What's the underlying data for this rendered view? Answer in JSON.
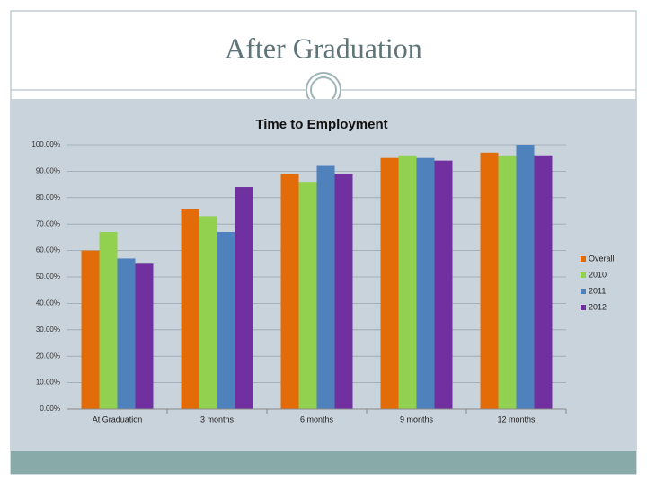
{
  "slide_title": "After Graduation",
  "chart_data": {
    "type": "bar",
    "title": "Time to Employment",
    "categories": [
      "At Graduation",
      "3 months",
      "6 months",
      "9 months",
      "12 months"
    ],
    "series": [
      {
        "name": "Overall",
        "color": "#e36c09",
        "values": [
          60,
          75.5,
          89,
          95,
          97
        ]
      },
      {
        "name": "2010",
        "color": "#92d050",
        "values": [
          67,
          73,
          86,
          96,
          96
        ]
      },
      {
        "name": "2011",
        "color": "#4f81bd",
        "values": [
          57,
          67,
          92,
          95,
          100
        ]
      },
      {
        "name": "2012",
        "color": "#7030a0",
        "values": [
          55,
          84,
          89,
          94,
          96
        ]
      }
    ],
    "ylim": [
      0,
      100
    ],
    "yticks": [
      {
        "value": 0,
        "label": "0.00%"
      },
      {
        "value": 10,
        "label": "10.00%"
      },
      {
        "value": 20,
        "label": "20.00%"
      },
      {
        "value": 30,
        "label": "30.00%"
      },
      {
        "value": 40,
        "label": "40.00%"
      },
      {
        "value": 50,
        "label": "50.00%"
      },
      {
        "value": 60,
        "label": "60.00%"
      },
      {
        "value": 70,
        "label": "70.00%"
      },
      {
        "value": 80,
        "label": "80.00%"
      },
      {
        "value": 90,
        "label": "90.00%"
      },
      {
        "value": 100,
        "label": "100.00%"
      }
    ],
    "grid": true,
    "legend": "right"
  }
}
